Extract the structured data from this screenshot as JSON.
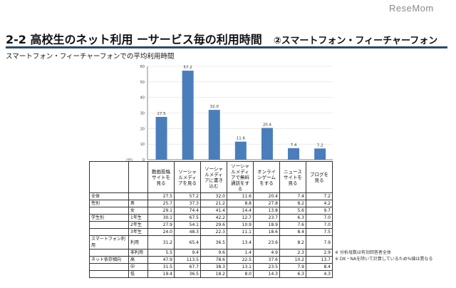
{
  "logo": "ReseMom",
  "title": "2-2 高校生のネット利用 ーサービス毎の利用時間",
  "title_sub": "②スマートフォン・フィーチャーフォン",
  "subtitle": "スマートフォン・フィーチャーフォンでの平均利用時間",
  "colors": {
    "bar": "#4a7ebb",
    "rule": "#2c4a6b"
  },
  "chart_data": {
    "type": "bar",
    "title": "スマートフォン・フィーチャーフォンでの平均利用時間",
    "ylabel": "(分)",
    "ylim": [
      0,
      60
    ],
    "yticks": [
      0,
      10,
      20,
      30,
      40,
      50,
      60
    ],
    "categories": [
      "動画投稿サイトを見る",
      "ソーシャルメディアを見る",
      "ソーシャルメディアに書き込む",
      "ソーシャルメディアで無料通話をする",
      "オンラインゲームをする",
      "ニュースサイトを見る",
      "ブログを見る"
    ],
    "values": [
      27.5,
      57.2,
      32.0,
      11.6,
      20.4,
      7.4,
      7.2
    ],
    "value_labels": [
      "27.5",
      "57.2",
      "32.0",
      "11.6",
      "20.4",
      "7.4",
      "7.2"
    ]
  },
  "table": {
    "rows": [
      {
        "g": "全体",
        "s": "",
        "v": [
          "27.5",
          "57.2",
          "32.0",
          "11.6",
          "20.4",
          "7.4",
          "7.2"
        ]
      },
      {
        "g": "性別",
        "s": "男",
        "v": [
          "25.7",
          "37.3",
          "21.2",
          "8.8",
          "27.8",
          "8.2",
          "4.2"
        ]
      },
      {
        "g": "",
        "s": "女",
        "v": [
          "29.1",
          "74.4",
          "41.4",
          "14.4",
          "13.8",
          "5.6",
          "9.7"
        ]
      },
      {
        "g": "学生別",
        "s": "1年生",
        "v": [
          "30.1",
          "67.5",
          "42.2",
          "12.7",
          "23.7",
          "6.3",
          "7.0"
        ]
      },
      {
        "g": "",
        "s": "2年生",
        "v": [
          "27.9",
          "54.1",
          "29.6",
          "10.9",
          "18.9",
          "7.6",
          "7.0"
        ]
      },
      {
        "g": "",
        "s": "3年生",
        "v": [
          "24.0",
          "48.3",
          "22.3",
          "11.1",
          "18.6",
          "8.4",
          "7.5"
        ]
      },
      {
        "g": "スマートフォン利用",
        "s": "利用",
        "v": [
          "31.2",
          "65.4",
          "36.5",
          "13.4",
          "23.6",
          "8.2",
          "7.9"
        ]
      },
      {
        "g": "",
        "s": "非利用",
        "v": [
          "5.5",
          "9.4",
          "9.6",
          "1.4",
          "4.9",
          "2.3",
          "2.9"
        ]
      },
      {
        "g": "ネット依存傾向",
        "s": "高",
        "v": [
          "47.9",
          "113.5",
          "78.6",
          "22.5",
          "37.6",
          "10.2",
          "13.7"
        ]
      },
      {
        "g": "",
        "s": "中",
        "v": [
          "31.5",
          "67.7",
          "38.3",
          "13.1",
          "23.5",
          "7.9",
          "8.4"
        ]
      },
      {
        "g": "",
        "s": "低",
        "v": [
          "19.4",
          "36.5",
          "18.2",
          "8.0",
          "14.3",
          "6.3",
          "4.3"
        ]
      }
    ]
  },
  "notes": [
    "※ 分析母数は有効回答者全体",
    "※ DK・NAを除いて計算しているため%値は異なる"
  ]
}
